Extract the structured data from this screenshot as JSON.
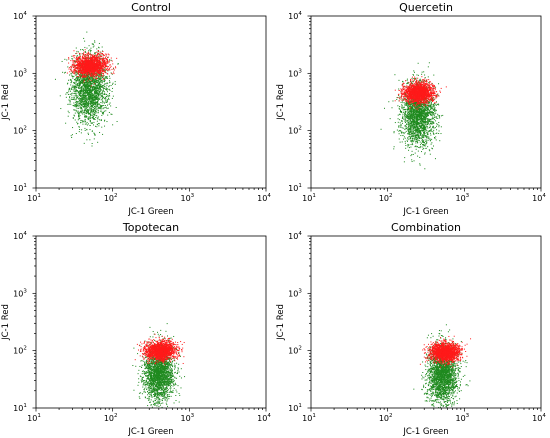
{
  "figure": {
    "colors": {
      "green": "#1f8a1f",
      "red": "#ff1a1a",
      "axis": "#000000"
    }
  },
  "chart_data": [
    {
      "type": "scatter",
      "title": "Control",
      "xlabel": "JC-1 Green",
      "ylabel": "JC-1 Red",
      "xscale": "log",
      "yscale": "log",
      "xlim": [
        10,
        10000
      ],
      "ylim": [
        10,
        10000
      ],
      "xticks": [
        "10",
        "10",
        "10",
        "10"
      ],
      "xtick_exponents": [
        "1",
        "2",
        "3",
        "4"
      ],
      "yticks": [
        "10",
        "10",
        "10",
        "10"
      ],
      "ytick_exponents": [
        "1",
        "2",
        "3",
        "4"
      ],
      "grid": false,
      "series": [
        {
          "color": "green",
          "points": 2200,
          "x_center": 50,
          "y_center": 550,
          "x_spread_log10": 0.12,
          "y_spread_log10": 0.3
        },
        {
          "color": "red",
          "points": 1600,
          "x_center": 52,
          "y_center": 1350,
          "x_spread_log10": 0.11,
          "y_spread_log10": 0.09
        }
      ]
    },
    {
      "type": "scatter",
      "title": "Quercetin",
      "xlabel": "JC-1 Green",
      "ylabel": "JC-1 Red",
      "xscale": "log",
      "yscale": "log",
      "xlim": [
        10,
        10000
      ],
      "ylim": [
        10,
        10000
      ],
      "xticks": [
        "10",
        "10",
        "10",
        "10"
      ],
      "xtick_exponents": [
        "1",
        "2",
        "3",
        "4"
      ],
      "yticks": [
        "10",
        "10",
        "10",
        "10"
      ],
      "ytick_exponents": [
        "1",
        "2",
        "3",
        "4"
      ],
      "grid": false,
      "series": [
        {
          "color": "green",
          "points": 2200,
          "x_center": 250,
          "y_center": 190,
          "x_spread_log10": 0.11,
          "y_spread_log10": 0.28
        },
        {
          "color": "red",
          "points": 1600,
          "x_center": 255,
          "y_center": 450,
          "x_spread_log10": 0.1,
          "y_spread_log10": 0.09
        }
      ]
    },
    {
      "type": "scatter",
      "title": "Topotecan",
      "xlabel": "JC-1 Green",
      "ylabel": "JC-1 Red",
      "xscale": "log",
      "yscale": "log",
      "xlim": [
        10,
        10000
      ],
      "ylim": [
        10,
        10000
      ],
      "xticks": [
        "10",
        "10",
        "10",
        "10"
      ],
      "xtick_exponents": [
        "1",
        "2",
        "3",
        "4"
      ],
      "yticks": [
        "10",
        "10",
        "10",
        "10"
      ],
      "ytick_exponents": [
        "1",
        "2",
        "3",
        "4"
      ],
      "grid": false,
      "series": [
        {
          "color": "green",
          "points": 2200,
          "x_center": 400,
          "y_center": 40,
          "x_spread_log10": 0.1,
          "y_spread_log10": 0.25
        },
        {
          "color": "red",
          "points": 1600,
          "x_center": 420,
          "y_center": 100,
          "x_spread_log10": 0.1,
          "y_spread_log10": 0.08
        }
      ]
    },
    {
      "type": "scatter",
      "title": "Combination",
      "xlabel": "JC-1 Green",
      "ylabel": "JC-1 Red",
      "xscale": "log",
      "yscale": "log",
      "xlim": [
        10,
        10000
      ],
      "ylim": [
        10,
        10000
      ],
      "xticks": [
        "10",
        "10",
        "10",
        "10"
      ],
      "xtick_exponents": [
        "1",
        "2",
        "3",
        "4"
      ],
      "yticks": [
        "10",
        "10",
        "10",
        "10"
      ],
      "ytick_exponents": [
        "1",
        "2",
        "3",
        "4"
      ],
      "grid": false,
      "series": [
        {
          "color": "green",
          "points": 2200,
          "x_center": 520,
          "y_center": 38,
          "x_spread_log10": 0.1,
          "y_spread_log10": 0.26
        },
        {
          "color": "red",
          "points": 1600,
          "x_center": 560,
          "y_center": 95,
          "x_spread_log10": 0.1,
          "y_spread_log10": 0.08
        }
      ]
    }
  ]
}
